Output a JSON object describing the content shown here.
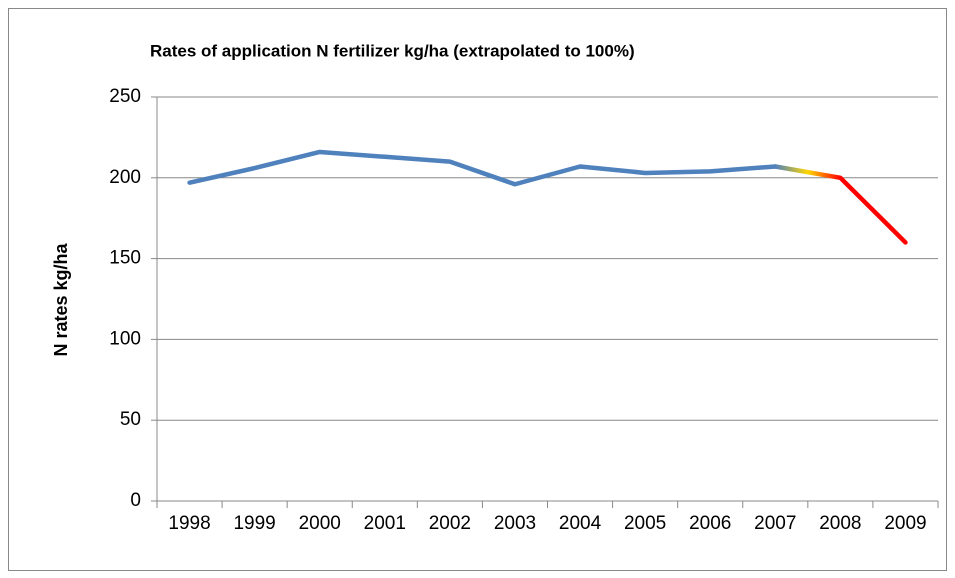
{
  "chart_data": {
    "type": "line",
    "title": "Rates of application N fertilizer kg/ha (extrapolated to 100%)",
    "y_label": "N rates kg/ha",
    "categories": [
      "1998",
      "1999",
      "2000",
      "2001",
      "2002",
      "2003",
      "2004",
      "2005",
      "2006",
      "2007",
      "2008",
      "2009"
    ],
    "series": [
      {
        "color": "#4f81bd",
        "values": [
          197,
          206,
          216,
          213,
          210,
          196,
          207,
          203,
          204,
          207,
          null,
          null
        ]
      },
      {
        "color": "#ff0000",
        "values": [
          null,
          null,
          null,
          null,
          null,
          null,
          null,
          null,
          null,
          207,
          200,
          160
        ]
      }
    ],
    "ylim": [
      0,
      250
    ],
    "yticks": [
      0,
      50,
      100,
      150,
      200,
      250
    ],
    "grid": true
  }
}
